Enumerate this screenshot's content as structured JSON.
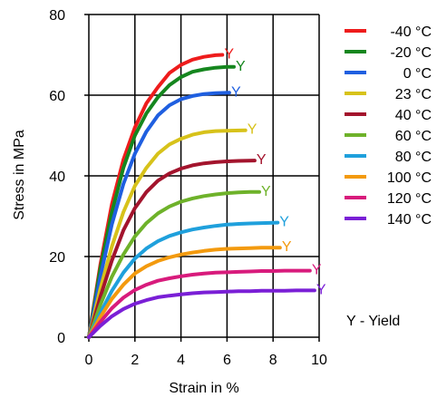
{
  "chart_data": {
    "type": "line",
    "title": "",
    "xlabel": "Strain in %",
    "ylabel": "Stress in MPa",
    "xlim": [
      0,
      10
    ],
    "ylim": [
      0,
      80
    ],
    "xticks": [
      0,
      2,
      4,
      6,
      8,
      10
    ],
    "yticks": [
      0,
      20,
      40,
      60,
      80
    ],
    "grid": true,
    "legend_position": "right",
    "yield_marker": "Y",
    "legend_note": "Y - Yield",
    "series": [
      {
        "name": "-40 °C",
        "color": "#ee1c1c",
        "x": [
          0,
          0.5,
          1,
          1.5,
          2,
          2.5,
          3,
          3.5,
          4,
          4.5,
          5,
          5.5,
          5.8
        ],
        "y": [
          0,
          18,
          33,
          44,
          52,
          58,
          62,
          65.5,
          67.5,
          68.8,
          69.5,
          69.9,
          70
        ]
      },
      {
        "name": "-20 °C",
        "color": "#15861e",
        "x": [
          0,
          0.5,
          1,
          1.5,
          2,
          2.5,
          3,
          3.5,
          4,
          4.5,
          5,
          5.5,
          6,
          6.3
        ],
        "y": [
          0,
          17,
          31,
          42,
          50,
          55.5,
          59.5,
          62.5,
          64.5,
          65.8,
          66.4,
          66.8,
          67,
          67
        ]
      },
      {
        "name": "0 °C",
        "color": "#1f5fe0",
        "x": [
          0,
          0.5,
          1,
          1.5,
          2,
          2.5,
          3,
          3.5,
          4,
          4.5,
          5,
          5.5,
          6.1
        ],
        "y": [
          0,
          15,
          28,
          38,
          45.5,
          51,
          55,
          57.5,
          59,
          59.8,
          60.3,
          60.5,
          60.6
        ]
      },
      {
        "name": "23 °C",
        "color": "#d7c21a",
        "x": [
          0,
          0.5,
          1,
          1.5,
          2,
          2.5,
          3,
          3.5,
          4,
          4.5,
          5,
          5.5,
          6,
          6.8
        ],
        "y": [
          0,
          12,
          22.5,
          31,
          37.5,
          42,
          45.5,
          47.8,
          49.2,
          50.2,
          50.8,
          51.1,
          51.2,
          51.3
        ]
      },
      {
        "name": "40 °C",
        "color": "#a3142d",
        "x": [
          0,
          0.5,
          1,
          1.5,
          2,
          2.5,
          3,
          3.5,
          4,
          4.5,
          5,
          5.5,
          6,
          6.5,
          7.2
        ],
        "y": [
          0,
          10,
          19,
          26.5,
          32,
          36,
          38.8,
          40.6,
          41.8,
          42.6,
          43.1,
          43.4,
          43.6,
          43.7,
          43.8
        ]
      },
      {
        "name": "60 °C",
        "color": "#6eb22a",
        "x": [
          0,
          0.5,
          1,
          1.5,
          2,
          2.5,
          3,
          3.5,
          4,
          4.5,
          5,
          5.5,
          6,
          6.5,
          7,
          7.4
        ],
        "y": [
          0,
          8,
          15,
          20.5,
          25,
          28.3,
          30.7,
          32.4,
          33.6,
          34.4,
          35,
          35.4,
          35.7,
          35.9,
          36,
          36
        ]
      },
      {
        "name": "80 °C",
        "color": "#1fa0dc",
        "x": [
          0,
          0.5,
          1,
          1.5,
          2,
          2.5,
          3,
          3.5,
          4,
          4.5,
          5,
          5.5,
          6,
          6.5,
          7,
          7.5,
          8.2
        ],
        "y": [
          0,
          6,
          11.5,
          16,
          19.5,
          22,
          23.8,
          25.1,
          26,
          26.7,
          27.2,
          27.6,
          27.9,
          28.1,
          28.2,
          28.3,
          28.4
        ]
      },
      {
        "name": "100 °C",
        "color": "#f39a0e",
        "x": [
          0,
          0.5,
          1,
          1.5,
          2,
          2.5,
          3,
          3.5,
          4,
          4.5,
          5,
          5.5,
          6,
          6.5,
          7,
          7.5,
          8.3
        ],
        "y": [
          0,
          5,
          9.5,
          13,
          15.8,
          17.6,
          18.9,
          19.8,
          20.5,
          21,
          21.4,
          21.7,
          21.9,
          22,
          22.1,
          22.2,
          22.2
        ]
      },
      {
        "name": "120 °C",
        "color": "#d81b7c",
        "x": [
          0,
          0.5,
          1,
          1.5,
          2,
          2.5,
          3,
          3.5,
          4,
          4.5,
          5,
          5.5,
          6,
          6.5,
          7,
          7.5,
          8,
          8.5,
          9.6
        ],
        "y": [
          0,
          3.8,
          7.2,
          9.8,
          11.7,
          13,
          14,
          14.6,
          15.1,
          15.5,
          15.8,
          16,
          16.1,
          16.2,
          16.3,
          16.4,
          16.4,
          16.5,
          16.5
        ]
      },
      {
        "name": "140 °C",
        "color": "#7a1fd6",
        "x": [
          0,
          0.5,
          1,
          1.5,
          2,
          2.5,
          3,
          3.5,
          4,
          4.5,
          5,
          5.5,
          6,
          6.5,
          7,
          7.5,
          8,
          8.5,
          9,
          9.8
        ],
        "y": [
          0,
          2.8,
          5.2,
          7,
          8.3,
          9.2,
          9.9,
          10.3,
          10.6,
          10.9,
          11.1,
          11.2,
          11.3,
          11.4,
          11.4,
          11.5,
          11.5,
          11.5,
          11.6,
          11.6
        ]
      }
    ]
  }
}
